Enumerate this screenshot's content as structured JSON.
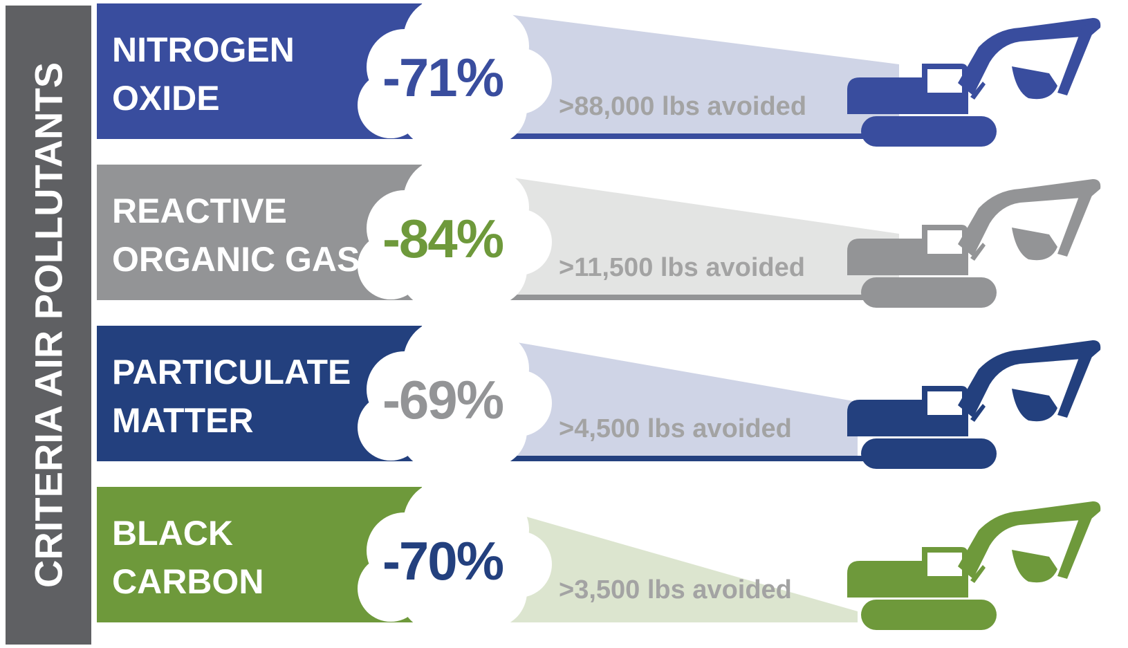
{
  "side_title": "CRITERIA AIR POLLUTANTS",
  "colors": {
    "sidebar": "#5f6063",
    "blue": "#394d9e",
    "gray": "#939496",
    "navy": "#23407e",
    "green": "#6e993b"
  },
  "icons": [
    "cloud-icon",
    "excavator-icon"
  ],
  "rows": [
    {
      "name_line1": "NITROGEN",
      "name_line2": "OXIDE",
      "reduction": "-71%",
      "reduction_value": -71,
      "avoided": ">88,000 lbs avoided",
      "bar_color": "#394d9e",
      "beam_color": "#cfd4e6",
      "pct_color": "#394d9e",
      "excavator_color": "#394d9e"
    },
    {
      "name_line1": "REACTIVE",
      "name_line2": "ORGANIC GAS",
      "reduction": "-84%",
      "reduction_value": -84,
      "avoided": ">11,500 lbs avoided",
      "bar_color": "#939496",
      "beam_color": "#e3e4e3",
      "pct_color": "#6e993b",
      "excavator_color": "#939496"
    },
    {
      "name_line1": "PARTICULATE",
      "name_line2": "MATTER",
      "reduction": "-69%",
      "reduction_value": -69,
      "avoided": ">4,500 lbs avoided",
      "bar_color": "#23407e",
      "beam_color": "#cfd4e6",
      "pct_color": "#939496",
      "excavator_color": "#23407e"
    },
    {
      "name_line1": "BLACK",
      "name_line2": "CARBON",
      "reduction": "-70%",
      "reduction_value": -70,
      "avoided": ">3,500 lbs avoided",
      "bar_color": "#6e993b",
      "beam_color": "#dce5cf",
      "pct_color": "#23407e",
      "excavator_color": "#6e993b"
    }
  ]
}
